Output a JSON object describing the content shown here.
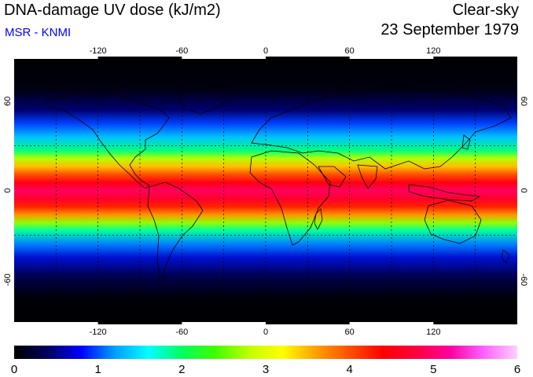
{
  "header": {
    "title": "DNA-damage UV dose (kJ/m2)",
    "subtitle": "MSR - KNMI",
    "sky_condition": "Clear-sky",
    "date": "23 September 1979"
  },
  "colors": {
    "subtitle": "#0000ff",
    "background": "#ffffff"
  },
  "map": {
    "projection": "equirectangular",
    "lon_range": [
      -180,
      180
    ],
    "lat_range": [
      -90,
      90
    ],
    "top_lon_ticks": [
      "-120",
      "-60",
      "0",
      "60",
      "120"
    ],
    "bottom_lon_ticks": [
      "-120",
      "-60",
      "0",
      "60",
      "120"
    ],
    "left_lat_ticks": [
      "60",
      "0",
      "-60"
    ],
    "right_lat_ticks": [
      "60",
      "0",
      "-60"
    ],
    "lon_tick_values": [
      -120,
      -60,
      0,
      60,
      120
    ],
    "lat_tick_values": [
      60,
      0,
      -60
    ],
    "gridlines_lon": [
      -150,
      -120,
      -90,
      -60,
      -30,
      0,
      30,
      60,
      90,
      120,
      150
    ],
    "gridlines_lat": [
      -30,
      30
    ],
    "gridline_style": "dashed"
  },
  "colorbar": {
    "min": 0,
    "max": 6,
    "tick_labels": [
      "0",
      "1",
      "2",
      "3",
      "4",
      "5",
      "6"
    ],
    "tick_values": [
      0,
      1,
      2,
      3,
      4,
      5,
      6
    ],
    "colormap": [
      "#000000",
      "#000060",
      "#0000ff",
      "#00a0ff",
      "#00ffff",
      "#00ff60",
      "#40ff00",
      "#c0ff00",
      "#ffff00",
      "#ffa000",
      "#ff5000",
      "#ff0000",
      "#ff0040",
      "#ff00a0",
      "#ff60ff",
      "#ffd0ff"
    ]
  },
  "chart_data": {
    "type": "heatmap",
    "title": "DNA-damage UV dose (kJ/m2)",
    "xlabel": "",
    "ylabel": "",
    "x_range": [
      -180,
      180
    ],
    "y_range": [
      -90,
      90
    ],
    "color_range": [
      0,
      6
    ],
    "zonal_profile": {
      "lat": [
        90,
        75,
        60,
        45,
        30,
        20,
        10,
        0,
        -10,
        -20,
        -30,
        -45,
        -60,
        -75,
        -90
      ],
      "value": [
        0.0,
        0.05,
        0.6,
        1.6,
        2.9,
        3.9,
        4.4,
        4.6,
        4.5,
        4.0,
        3.0,
        1.6,
        0.5,
        0.1,
        0.0
      ]
    }
  }
}
